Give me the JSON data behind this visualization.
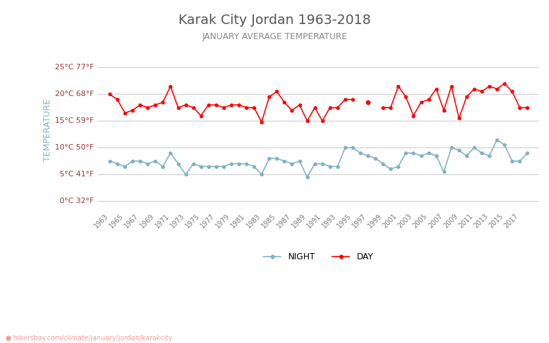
{
  "title": "Karak City Jordan 1963-2018",
  "subtitle": "JANUARY AVERAGE TEMPERATURE",
  "ylabel": "TEMPERATURE",
  "watermark": "hikersbay.com/climate/january/jordan/karakcity",
  "years": [
    1963,
    1964,
    1965,
    1966,
    1967,
    1968,
    1969,
    1970,
    1971,
    1972,
    1973,
    1974,
    1975,
    1976,
    1977,
    1978,
    1979,
    1980,
    1981,
    1982,
    1983,
    1984,
    1985,
    1986,
    1987,
    1988,
    1989,
    1990,
    1991,
    1992,
    1993,
    1994,
    1995,
    1996,
    1997,
    1998,
    1999,
    2000,
    2001,
    2002,
    2003,
    2004,
    2005,
    2006,
    2007,
    2008,
    2009,
    2010,
    2011,
    2012,
    2013,
    2014,
    2015,
    2016,
    2017,
    2018
  ],
  "day_temps": [
    20.0,
    19.0,
    16.5,
    17.0,
    18.0,
    17.5,
    18.0,
    18.5,
    21.5,
    17.5,
    18.0,
    17.5,
    16.0,
    18.0,
    18.0,
    17.5,
    18.0,
    18.0,
    17.5,
    17.5,
    14.8,
    19.5,
    20.5,
    18.5,
    17.0,
    18.0,
    15.0,
    17.5,
    15.0,
    17.5,
    17.5,
    19.0,
    19.0,
    null,
    18.5,
    null,
    17.5,
    17.5,
    21.5,
    19.5,
    16.0,
    18.5,
    19.0,
    21.0,
    17.0,
    21.5,
    15.5,
    19.5,
    21.0,
    20.5,
    21.5,
    21.0,
    22.0,
    20.5,
    17.5,
    17.5
  ],
  "night_temps": [
    7.5,
    7.0,
    6.5,
    7.5,
    7.5,
    7.0,
    7.5,
    6.5,
    9.0,
    7.0,
    5.0,
    7.0,
    6.5,
    6.5,
    6.5,
    6.5,
    7.0,
    7.0,
    7.0,
    6.5,
    5.0,
    8.0,
    8.0,
    7.5,
    7.0,
    7.5,
    4.5,
    7.0,
    7.0,
    6.5,
    6.5,
    10.0,
    10.0,
    9.0,
    8.5,
    8.0,
    7.0,
    6.0,
    6.5,
    9.0,
    9.0,
    8.5,
    9.0,
    8.5,
    5.5,
    10.0,
    9.5,
    8.5,
    10.0,
    9.0,
    8.5,
    11.5,
    10.5,
    7.5,
    7.5,
    9.0
  ],
  "day_color": "#ff0000",
  "night_color": "#7fb3c0",
  "bg_color": "#ffffff",
  "grid_color": "#cccccc",
  "title_color": "#555555",
  "subtitle_color": "#888888",
  "ylabel_color": "#7fb3c0",
  "tick_label_color": "#993333",
  "ytick_positions": [
    0,
    5,
    10,
    15,
    20,
    25
  ],
  "ytick_labels": [
    "0°C 32°F",
    "5°C 41°F",
    "10°C 50°F",
    "15°C 59°F",
    "20°C 68°F",
    "25°C 77°F"
  ],
  "ylim": [
    -1.5,
    28
  ],
  "legend_night": "NIGHT",
  "legend_day": "DAY"
}
